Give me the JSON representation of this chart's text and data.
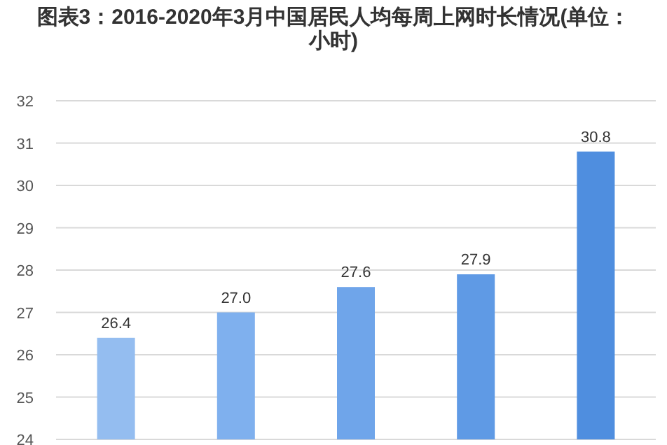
{
  "chart_data": {
    "type": "bar",
    "title": "图表3：2016-2020年3月中国居民人均每周上网时长情况(单位：小时)",
    "categories": [
      null,
      null,
      null,
      null,
      null
    ],
    "values": [
      26.4,
      27.0,
      27.6,
      27.9,
      30.8
    ],
    "colors": [
      "#94bdf0",
      "#7fb0ee",
      "#6fa5ea",
      "#5f9ae5",
      "#4f8edf"
    ],
    "value_labels": [
      "26.4",
      "27.0",
      "27.6",
      "27.9",
      "30.8"
    ],
    "ylim": [
      24,
      32
    ],
    "yticks": [
      24,
      25,
      26,
      27,
      28,
      29,
      30,
      31,
      32
    ],
    "grid": "y",
    "tick_labels": "y"
  }
}
